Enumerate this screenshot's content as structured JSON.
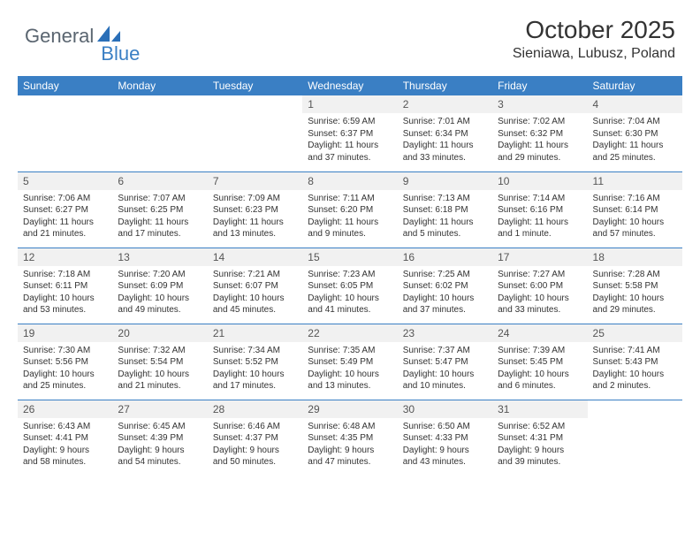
{
  "brand": {
    "text1": "General",
    "text2": "Blue",
    "text1_color": "#5a6570",
    "text2_color": "#3a7fc4",
    "shape_color": "#2a6fb8"
  },
  "header": {
    "month_title": "October 2025",
    "location": "Sieniawa, Lubusz, Poland"
  },
  "calendar": {
    "header_bg": "#3a7fc4",
    "header_fg": "#ffffff",
    "rule_color": "#3a7fc4",
    "daynum_bg": "#f1f1f1",
    "day_labels": [
      "Sunday",
      "Monday",
      "Tuesday",
      "Wednesday",
      "Thursday",
      "Friday",
      "Saturday"
    ],
    "weeks": [
      [
        null,
        null,
        null,
        {
          "n": "1",
          "sr": "Sunrise: 6:59 AM",
          "ss": "Sunset: 6:37 PM",
          "d1": "Daylight: 11 hours",
          "d2": "and 37 minutes."
        },
        {
          "n": "2",
          "sr": "Sunrise: 7:01 AM",
          "ss": "Sunset: 6:34 PM",
          "d1": "Daylight: 11 hours",
          "d2": "and 33 minutes."
        },
        {
          "n": "3",
          "sr": "Sunrise: 7:02 AM",
          "ss": "Sunset: 6:32 PM",
          "d1": "Daylight: 11 hours",
          "d2": "and 29 minutes."
        },
        {
          "n": "4",
          "sr": "Sunrise: 7:04 AM",
          "ss": "Sunset: 6:30 PM",
          "d1": "Daylight: 11 hours",
          "d2": "and 25 minutes."
        }
      ],
      [
        {
          "n": "5",
          "sr": "Sunrise: 7:06 AM",
          "ss": "Sunset: 6:27 PM",
          "d1": "Daylight: 11 hours",
          "d2": "and 21 minutes."
        },
        {
          "n": "6",
          "sr": "Sunrise: 7:07 AM",
          "ss": "Sunset: 6:25 PM",
          "d1": "Daylight: 11 hours",
          "d2": "and 17 minutes."
        },
        {
          "n": "7",
          "sr": "Sunrise: 7:09 AM",
          "ss": "Sunset: 6:23 PM",
          "d1": "Daylight: 11 hours",
          "d2": "and 13 minutes."
        },
        {
          "n": "8",
          "sr": "Sunrise: 7:11 AM",
          "ss": "Sunset: 6:20 PM",
          "d1": "Daylight: 11 hours",
          "d2": "and 9 minutes."
        },
        {
          "n": "9",
          "sr": "Sunrise: 7:13 AM",
          "ss": "Sunset: 6:18 PM",
          "d1": "Daylight: 11 hours",
          "d2": "and 5 minutes."
        },
        {
          "n": "10",
          "sr": "Sunrise: 7:14 AM",
          "ss": "Sunset: 6:16 PM",
          "d1": "Daylight: 11 hours",
          "d2": "and 1 minute."
        },
        {
          "n": "11",
          "sr": "Sunrise: 7:16 AM",
          "ss": "Sunset: 6:14 PM",
          "d1": "Daylight: 10 hours",
          "d2": "and 57 minutes."
        }
      ],
      [
        {
          "n": "12",
          "sr": "Sunrise: 7:18 AM",
          "ss": "Sunset: 6:11 PM",
          "d1": "Daylight: 10 hours",
          "d2": "and 53 minutes."
        },
        {
          "n": "13",
          "sr": "Sunrise: 7:20 AM",
          "ss": "Sunset: 6:09 PM",
          "d1": "Daylight: 10 hours",
          "d2": "and 49 minutes."
        },
        {
          "n": "14",
          "sr": "Sunrise: 7:21 AM",
          "ss": "Sunset: 6:07 PM",
          "d1": "Daylight: 10 hours",
          "d2": "and 45 minutes."
        },
        {
          "n": "15",
          "sr": "Sunrise: 7:23 AM",
          "ss": "Sunset: 6:05 PM",
          "d1": "Daylight: 10 hours",
          "d2": "and 41 minutes."
        },
        {
          "n": "16",
          "sr": "Sunrise: 7:25 AM",
          "ss": "Sunset: 6:02 PM",
          "d1": "Daylight: 10 hours",
          "d2": "and 37 minutes."
        },
        {
          "n": "17",
          "sr": "Sunrise: 7:27 AM",
          "ss": "Sunset: 6:00 PM",
          "d1": "Daylight: 10 hours",
          "d2": "and 33 minutes."
        },
        {
          "n": "18",
          "sr": "Sunrise: 7:28 AM",
          "ss": "Sunset: 5:58 PM",
          "d1": "Daylight: 10 hours",
          "d2": "and 29 minutes."
        }
      ],
      [
        {
          "n": "19",
          "sr": "Sunrise: 7:30 AM",
          "ss": "Sunset: 5:56 PM",
          "d1": "Daylight: 10 hours",
          "d2": "and 25 minutes."
        },
        {
          "n": "20",
          "sr": "Sunrise: 7:32 AM",
          "ss": "Sunset: 5:54 PM",
          "d1": "Daylight: 10 hours",
          "d2": "and 21 minutes."
        },
        {
          "n": "21",
          "sr": "Sunrise: 7:34 AM",
          "ss": "Sunset: 5:52 PM",
          "d1": "Daylight: 10 hours",
          "d2": "and 17 minutes."
        },
        {
          "n": "22",
          "sr": "Sunrise: 7:35 AM",
          "ss": "Sunset: 5:49 PM",
          "d1": "Daylight: 10 hours",
          "d2": "and 13 minutes."
        },
        {
          "n": "23",
          "sr": "Sunrise: 7:37 AM",
          "ss": "Sunset: 5:47 PM",
          "d1": "Daylight: 10 hours",
          "d2": "and 10 minutes."
        },
        {
          "n": "24",
          "sr": "Sunrise: 7:39 AM",
          "ss": "Sunset: 5:45 PM",
          "d1": "Daylight: 10 hours",
          "d2": "and 6 minutes."
        },
        {
          "n": "25",
          "sr": "Sunrise: 7:41 AM",
          "ss": "Sunset: 5:43 PM",
          "d1": "Daylight: 10 hours",
          "d2": "and 2 minutes."
        }
      ],
      [
        {
          "n": "26",
          "sr": "Sunrise: 6:43 AM",
          "ss": "Sunset: 4:41 PM",
          "d1": "Daylight: 9 hours",
          "d2": "and 58 minutes."
        },
        {
          "n": "27",
          "sr": "Sunrise: 6:45 AM",
          "ss": "Sunset: 4:39 PM",
          "d1": "Daylight: 9 hours",
          "d2": "and 54 minutes."
        },
        {
          "n": "28",
          "sr": "Sunrise: 6:46 AM",
          "ss": "Sunset: 4:37 PM",
          "d1": "Daylight: 9 hours",
          "d2": "and 50 minutes."
        },
        {
          "n": "29",
          "sr": "Sunrise: 6:48 AM",
          "ss": "Sunset: 4:35 PM",
          "d1": "Daylight: 9 hours",
          "d2": "and 47 minutes."
        },
        {
          "n": "30",
          "sr": "Sunrise: 6:50 AM",
          "ss": "Sunset: 4:33 PM",
          "d1": "Daylight: 9 hours",
          "d2": "and 43 minutes."
        },
        {
          "n": "31",
          "sr": "Sunrise: 6:52 AM",
          "ss": "Sunset: 4:31 PM",
          "d1": "Daylight: 9 hours",
          "d2": "and 39 minutes."
        },
        null
      ]
    ]
  }
}
